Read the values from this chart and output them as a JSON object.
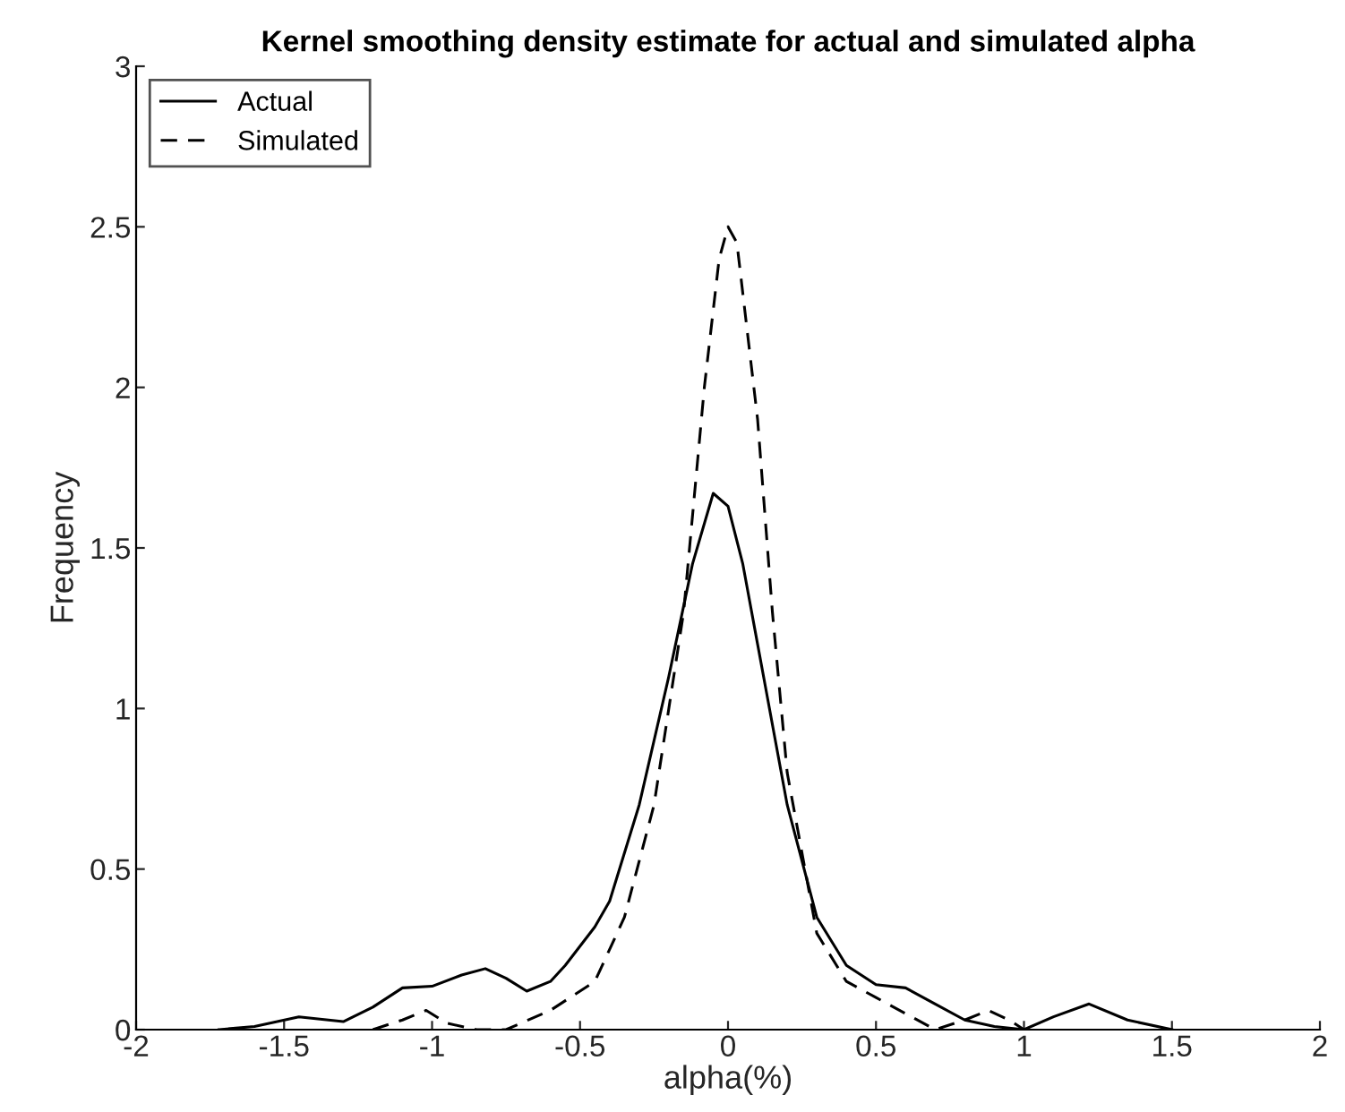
{
  "chart_data": {
    "type": "line",
    "title": "Kernel smoothing density estimate for actual and simulated alpha",
    "xlabel": "alpha(%)",
    "ylabel": "Frequency",
    "xlim": [
      -2,
      2
    ],
    "ylim": [
      0,
      3
    ],
    "xticks": [
      -2,
      -1.5,
      -1,
      -0.5,
      0,
      0.5,
      1,
      1.5,
      2
    ],
    "yticks": [
      0,
      0.5,
      1,
      1.5,
      2,
      2.5,
      3
    ],
    "grid": false,
    "legend": "top left",
    "marker": "none",
    "series": [
      {
        "name": "Actual",
        "color": "#000000",
        "line_style": "solid",
        "x": [
          -1.72,
          -1.6,
          -1.45,
          -1.3,
          -1.2,
          -1.1,
          -1.0,
          -0.9,
          -0.82,
          -0.75,
          -0.68,
          -0.6,
          -0.55,
          -0.45,
          -0.4,
          -0.3,
          -0.2,
          -0.12,
          -0.05,
          0,
          0.05,
          0.1,
          0.2,
          0.3,
          0.4,
          0.5,
          0.6,
          0.7,
          0.8,
          0.9,
          1.0,
          1.1,
          1.22,
          1.35,
          1.5
        ],
        "values": [
          0,
          0.01,
          0.04,
          0.025,
          0.07,
          0.13,
          0.135,
          0.17,
          0.19,
          0.16,
          0.12,
          0.15,
          0.2,
          0.32,
          0.4,
          0.7,
          1.1,
          1.45,
          1.67,
          1.63,
          1.45,
          1.2,
          0.7,
          0.35,
          0.2,
          0.14,
          0.13,
          0.08,
          0.03,
          0.01,
          0,
          0.04,
          0.08,
          0.03,
          0
        ]
      },
      {
        "name": "Simulated",
        "color": "#000000",
        "line_style": "dashed",
        "x": [
          -1.2,
          -1.1,
          -1.02,
          -0.95,
          -0.85,
          -0.75,
          -0.6,
          -0.45,
          -0.35,
          -0.25,
          -0.15,
          -0.08,
          -0.03,
          0,
          0.03,
          0.1,
          0.15,
          0.2,
          0.3,
          0.4,
          0.5,
          0.6,
          0.7,
          0.8,
          0.88,
          0.95,
          1.0,
          1.05
        ],
        "values": [
          0,
          0.03,
          0.06,
          0.02,
          0,
          0,
          0.06,
          0.15,
          0.35,
          0.7,
          1.3,
          2.0,
          2.4,
          2.5,
          2.45,
          1.9,
          1.3,
          0.8,
          0.3,
          0.15,
          0.1,
          0.05,
          0,
          0.03,
          0.06,
          0.03,
          0,
          0
        ]
      }
    ]
  }
}
